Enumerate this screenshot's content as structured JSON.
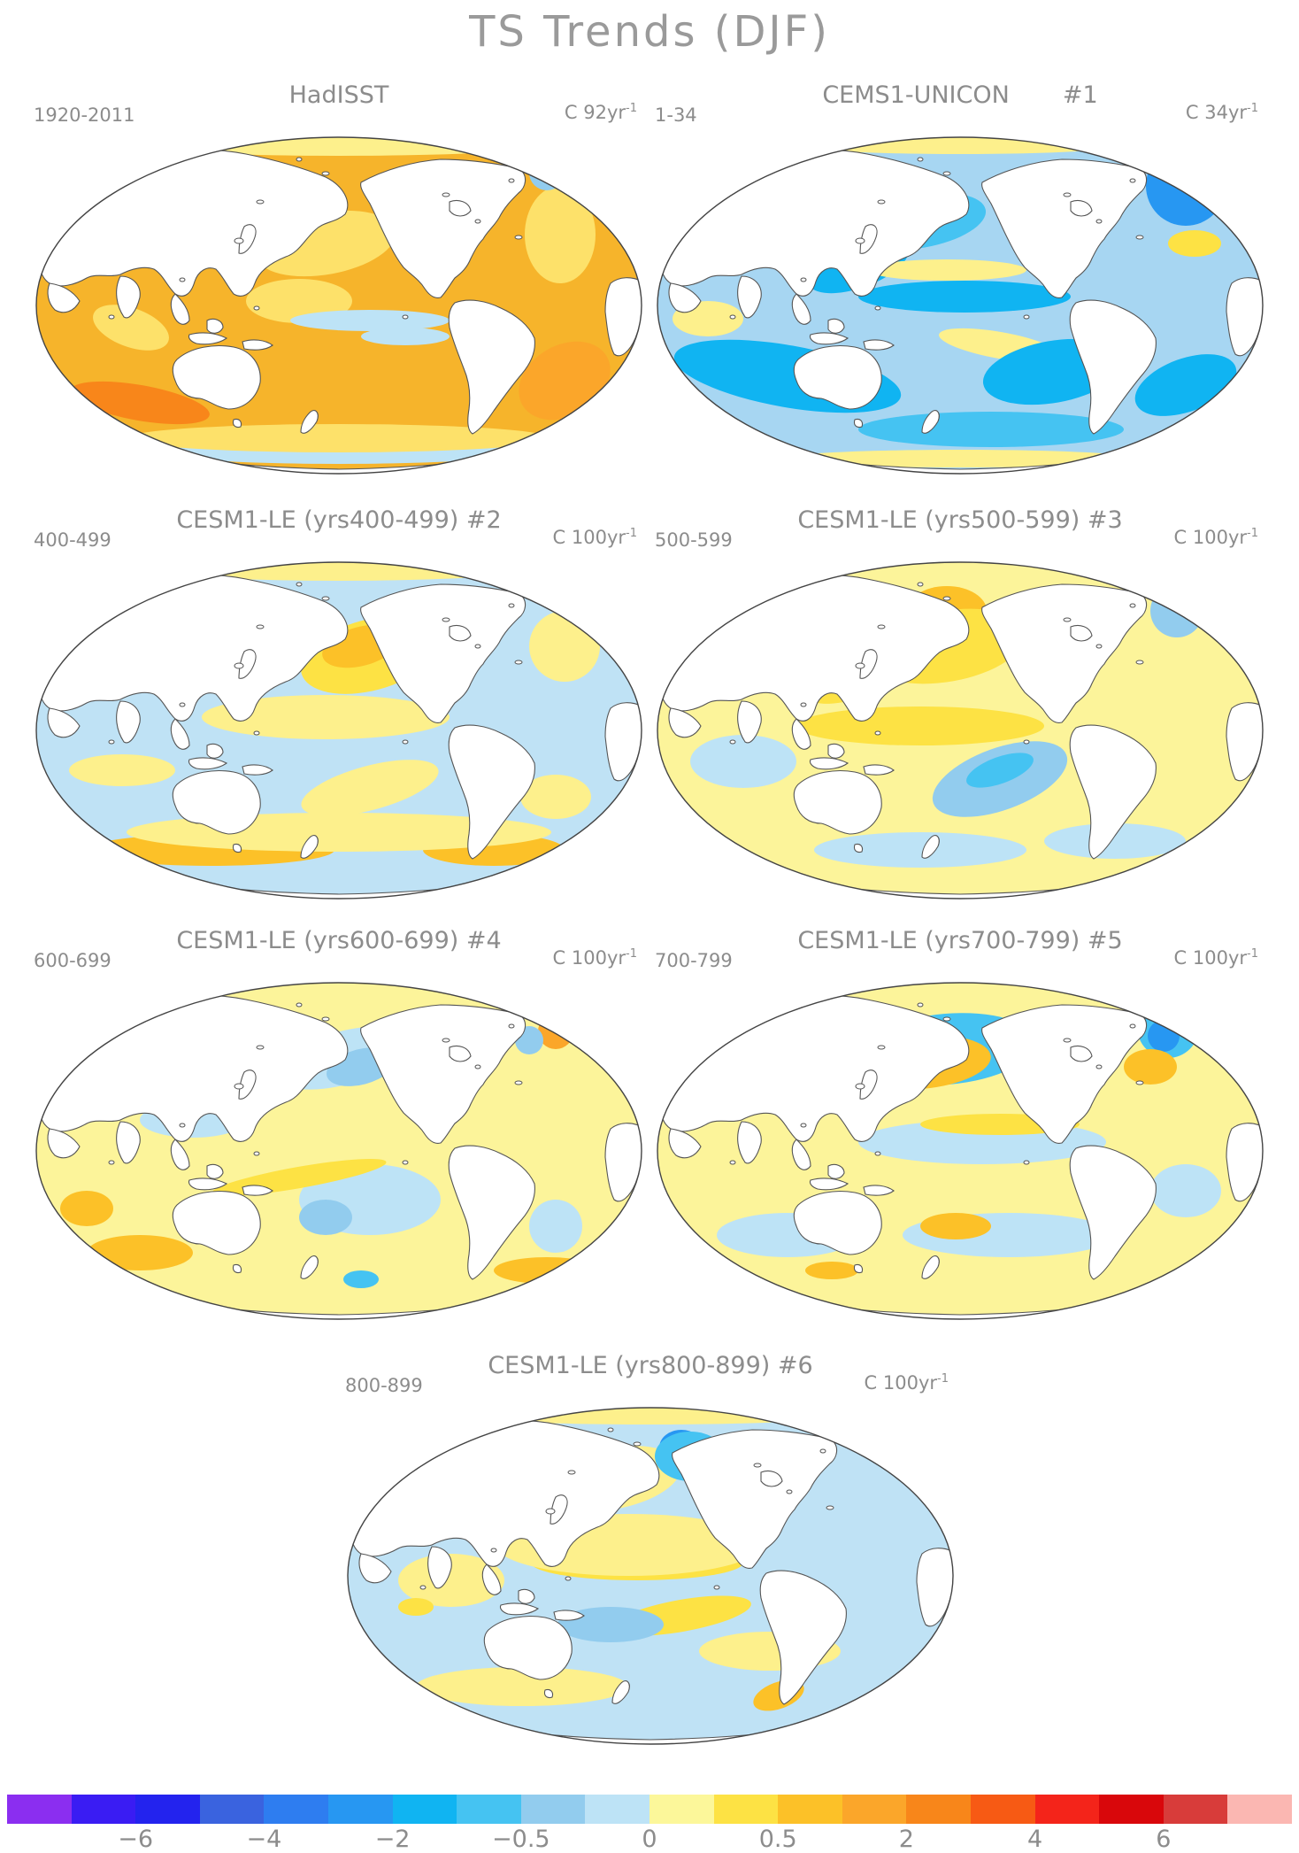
{
  "title": "TS Trends (DJF)",
  "panels": [
    {
      "id": "hadisst",
      "title": "HadISST",
      "range": "1920-2011",
      "units_prefix": "C ",
      "units_value": "92yr",
      "units_exp": "-1",
      "base": "#f6b42b",
      "features": "hadisst"
    },
    {
      "id": "cems1",
      "title": "CEMS1-UNICON       #1",
      "range": "1-34",
      "units_prefix": "C ",
      "units_value": "34yr",
      "units_exp": "-1",
      "base": "#a7d6f2",
      "features": "cems1"
    },
    {
      "id": "le2",
      "title": "CESM1-LE (yrs400-499) #2",
      "range": "400-499",
      "units_prefix": "C ",
      "units_value": "100yr",
      "units_exp": "-1",
      "base": "#bfe2f5",
      "features": "le2"
    },
    {
      "id": "le3",
      "title": "CESM1-LE (yrs500-599) #3",
      "range": "500-599",
      "units_prefix": "C ",
      "units_value": "100yr",
      "units_exp": "-1",
      "base": "#fcf49a",
      "features": "le3"
    },
    {
      "id": "le4",
      "title": "CESM1-LE (yrs600-699) #4",
      "range": "600-699",
      "units_prefix": "C ",
      "units_value": "100yr",
      "units_exp": "-1",
      "base": "#fcf49a",
      "features": "le4"
    },
    {
      "id": "le5",
      "title": "CESM1-LE (yrs700-799) #5",
      "range": "700-799",
      "units_prefix": "C ",
      "units_value": "100yr",
      "units_exp": "-1",
      "base": "#fcf49a",
      "features": "le5"
    },
    {
      "id": "le6",
      "title": "CESM1-LE (yrs800-899) #6",
      "range": "800-899",
      "units_prefix": "C ",
      "units_value": "100yr",
      "units_exp": "-1",
      "base": "#bfe2f5",
      "features": "le6"
    }
  ],
  "colorbar": {
    "colors": [
      "#8b2ef0",
      "#3a1cf3",
      "#2323ee",
      "#3a63df",
      "#2e7df0",
      "#2797f2",
      "#10b4f2",
      "#45c3f2",
      "#92ccee",
      "#bde3f6",
      "#fcf79a",
      "#fde244",
      "#fcc128",
      "#fba62a",
      "#f8861a",
      "#f75a14",
      "#f4241a",
      "#d9070b",
      "#d83c3a",
      "#fbb7b2"
    ],
    "labels": [
      {
        "text": "−6",
        "boundary": 2
      },
      {
        "text": "−4",
        "boundary": 4
      },
      {
        "text": "−2",
        "boundary": 6
      },
      {
        "text": "−0.5",
        "boundary": 8
      },
      {
        "text": "0",
        "boundary": 10
      },
      {
        "text": "0.5",
        "boundary": 12
      },
      {
        "text": "2",
        "boundary": 14
      },
      {
        "text": "4",
        "boundary": 16
      },
      {
        "text": "6",
        "boundary": 18
      }
    ]
  }
}
